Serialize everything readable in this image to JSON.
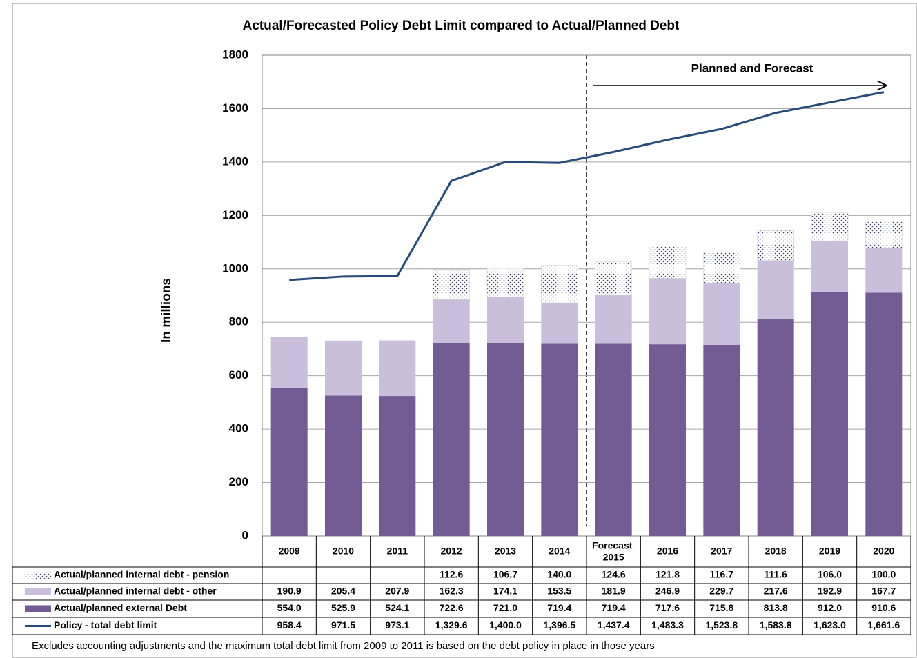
{
  "chart_data": {
    "type": "stacked_bar_line",
    "title": "Actual/Forecasted Policy Debt Limit compared to Actual/Planned Debt",
    "y_label": "In millions",
    "annotation": "Planned and Forecast",
    "footnote": "Excludes accounting adjustments and the maximum total debt limit from 2009 to 2011 is based on the debt policy in place in those years",
    "categories": [
      "2009",
      "2010",
      "2011",
      "2012",
      "2013",
      "2014",
      "Forecast 2015",
      "2016",
      "2017",
      "2018",
      "2019",
      "2020"
    ],
    "ylim": [
      0,
      1800
    ],
    "yticks": [
      0,
      200,
      400,
      600,
      800,
      1000,
      1200,
      1400,
      1600,
      1800
    ],
    "grid": true,
    "series": [
      {
        "name": "Actual/planned internal debt - pension",
        "kind": "bar",
        "color": "#3a3a70",
        "pattern": "dots",
        "values": [
          null,
          null,
          null,
          112.6,
          106.7,
          140.0,
          124.6,
          121.8,
          116.7,
          111.6,
          106.0,
          100.0
        ],
        "value_labels": [
          null,
          null,
          null,
          "112.6",
          "106.7",
          "140.0",
          "124.6",
          "121.8",
          "116.7",
          "111.6",
          "106.0",
          "100.0"
        ]
      },
      {
        "name": "Actual/planned internal debt - other",
        "kind": "bar",
        "color": "#c9bedb",
        "values": [
          190.9,
          205.4,
          207.9,
          162.3,
          174.1,
          153.5,
          181.9,
          246.9,
          229.7,
          217.6,
          192.9,
          167.7
        ],
        "value_labels": [
          "190.9",
          "205.4",
          "207.9",
          "162.3",
          "174.1",
          "153.5",
          "181.9",
          "246.9",
          "229.7",
          "217.6",
          "192.9",
          "167.7"
        ]
      },
      {
        "name": "Actual/planned external Debt",
        "kind": "bar",
        "color": "#735b94",
        "values": [
          554.0,
          525.9,
          524.1,
          722.6,
          721.0,
          719.4,
          719.4,
          717.6,
          715.8,
          813.8,
          912.0,
          910.6
        ],
        "value_labels": [
          "554.0",
          "525.9",
          "524.1",
          "722.6",
          "721.0",
          "719.4",
          "719.4",
          "717.6",
          "715.8",
          "813.8",
          "912.0",
          "910.6"
        ]
      },
      {
        "name": "Policy - total debt limit",
        "kind": "line",
        "color": "#264b78",
        "values": [
          958.4,
          971.5,
          973.1,
          1329.6,
          1400.0,
          1396.5,
          1437.4,
          1483.3,
          1523.8,
          1583.8,
          1623.0,
          1661.6
        ],
        "value_labels": [
          "958.4",
          "971.5",
          "973.1",
          "1,329.6",
          "1,400.0",
          "1,396.5",
          "1,437.4",
          "1,483.3",
          "1,523.8",
          "1,583.8",
          "1,623.0",
          "1,661.6"
        ]
      }
    ]
  }
}
